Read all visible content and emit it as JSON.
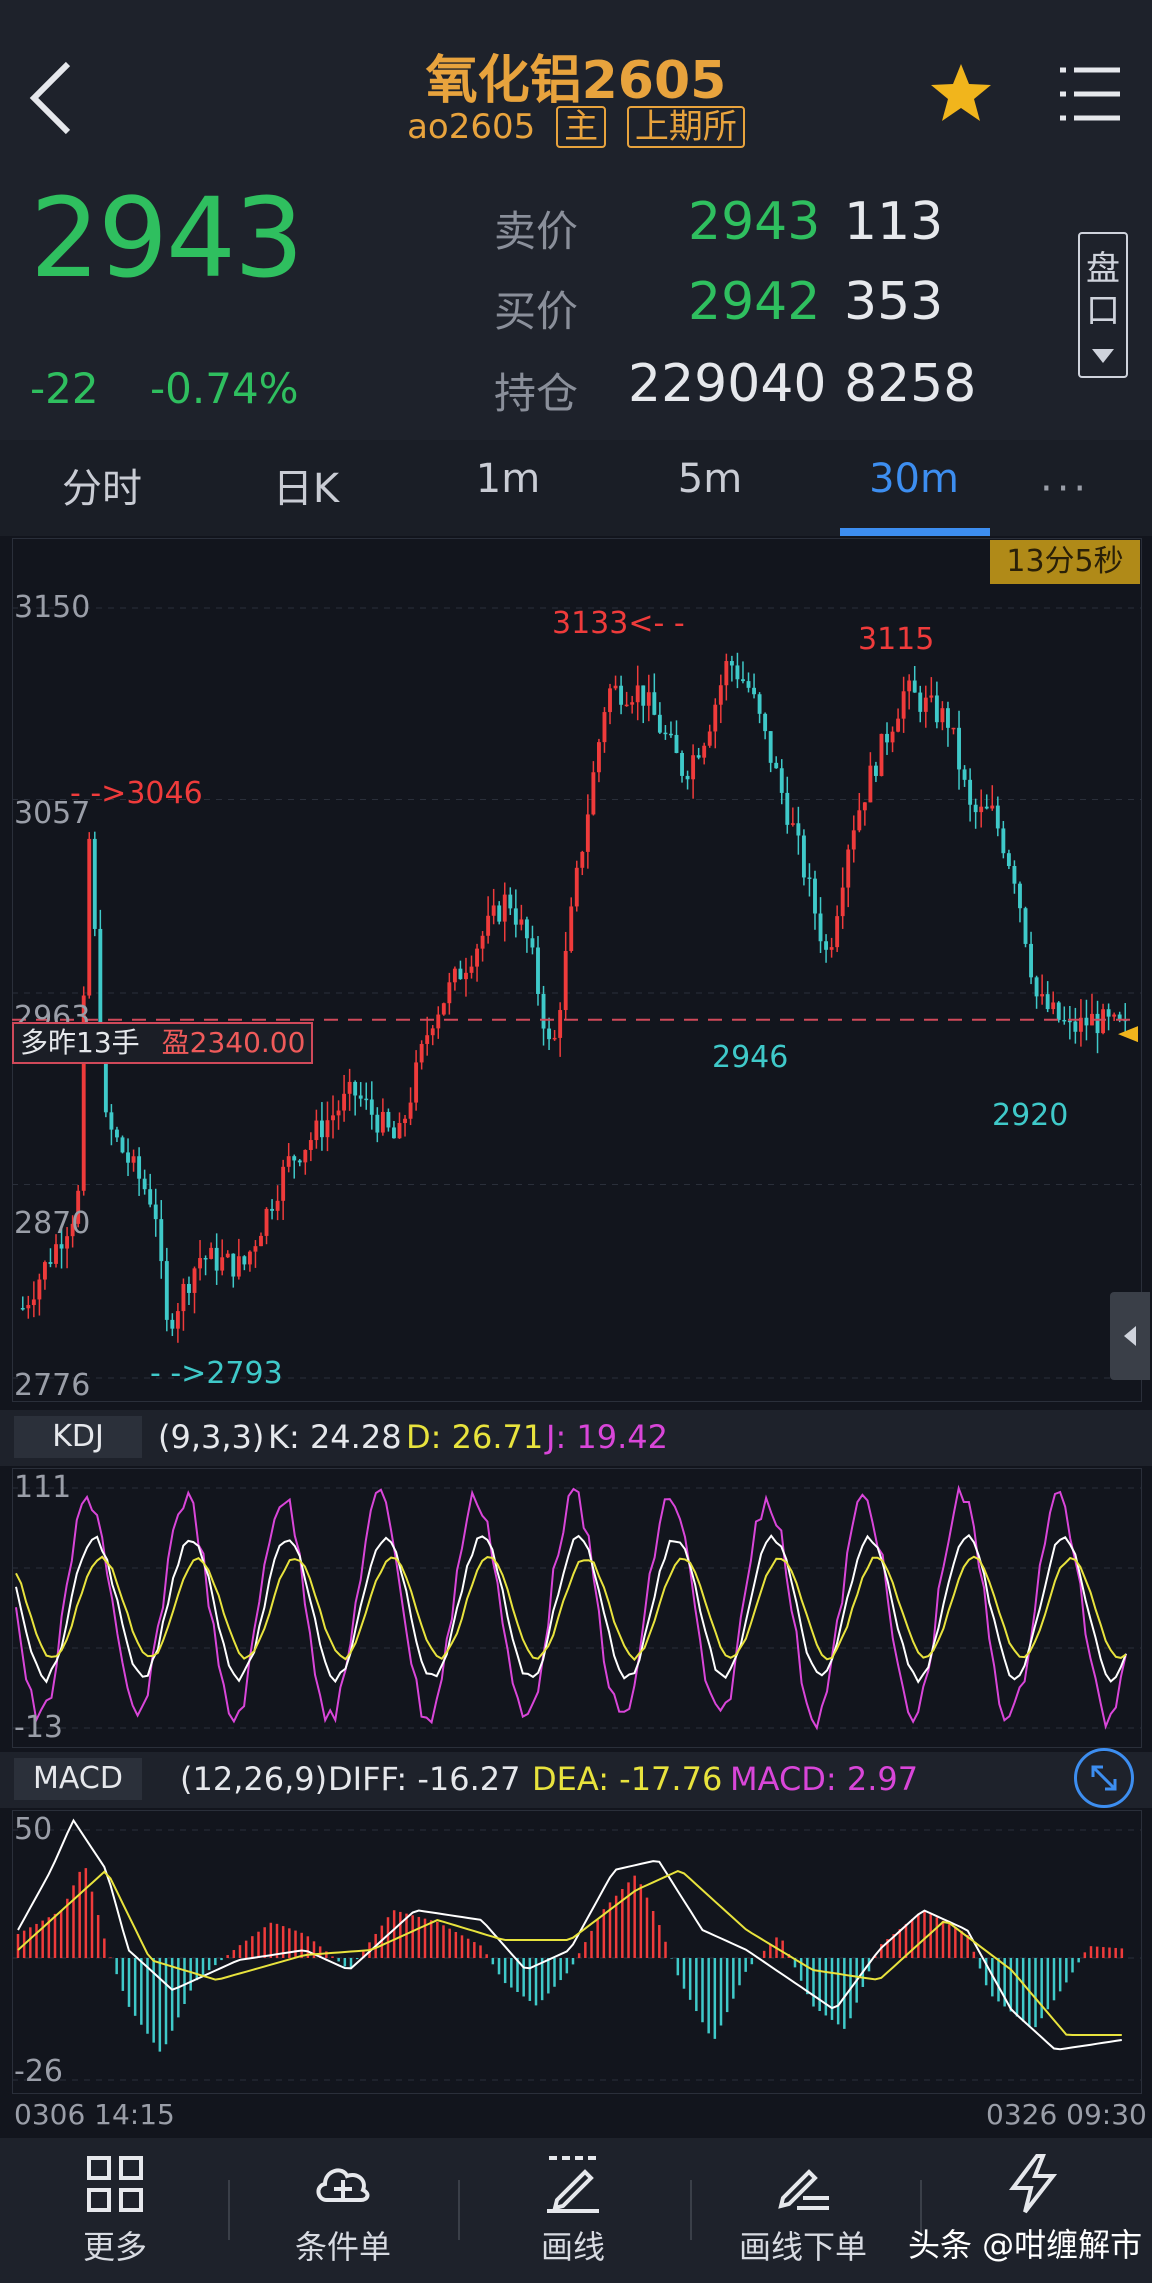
{
  "header": {
    "title": "氧化铝2605",
    "code": "ao2605",
    "tag_main": "主",
    "tag_exchange": "上期所",
    "last_price": "2943",
    "change": "-22",
    "change_pct": "-0.74%"
  },
  "quote": {
    "ask_label": "卖价",
    "ask_price": "2943",
    "ask_vol": "113",
    "bid_label": "买价",
    "bid_price": "2942",
    "bid_vol": "353",
    "oi_label": "持仓",
    "oi": "229040",
    "oi_change": "8258",
    "pan_label": "盘口"
  },
  "tabs": [
    {
      "label": "分时"
    },
    {
      "label": "日K"
    },
    {
      "label": "1m"
    },
    {
      "label": "5m"
    },
    {
      "label": "30m",
      "active": true
    }
  ],
  "more_tabs_label": "···",
  "countdown": "13分5秒",
  "position": {
    "text": "多昨13手",
    "pnl": "盈2340.00"
  },
  "price_axis": [
    "3150",
    "3057",
    "2963",
    "2870",
    "2776"
  ],
  "annotations": {
    "high1": "3133<- -",
    "high2": "3115",
    "mark_left": "- ->3046",
    "low_left": "- ->2793",
    "low_mid": "2946",
    "low_right": "2920"
  },
  "kdj": {
    "name": "KDJ",
    "params": "(9,3,3)",
    "k": "K: 24.28",
    "d": "D: 26.71",
    "j": "J: 19.42",
    "axis_top": "111",
    "axis_bottom": "-13"
  },
  "macd": {
    "name": "MACD",
    "params": "(12,26,9)",
    "diff": "DIFF: -16.27",
    "dea": "DEA: -17.76",
    "macd": "MACD: 2.97",
    "axis_top": "50",
    "axis_bottom": "-26"
  },
  "time_axis": {
    "start": "0306 14:15",
    "end": "0326 09:30"
  },
  "colors": {
    "up": "#ef3b3b",
    "down": "#3fc9c9",
    "accent": "#3d8ef0",
    "gold": "#e8a33d",
    "green": "#2fbf5f"
  },
  "footer": [
    {
      "label": "更多",
      "icon": "grid-icon"
    },
    {
      "label": "条件单",
      "icon": "cloud-plus-icon"
    },
    {
      "label": "画线",
      "icon": "pen-line-icon"
    },
    {
      "label": "画线下单",
      "icon": "pen-order-icon"
    },
    {
      "label": "闪电",
      "icon": "lightning-icon"
    }
  ],
  "watermark": "头条 @咁缠解市",
  "chart_data": {
    "type": "candlestick",
    "period": "30m",
    "y_range": [
      2776,
      3150
    ],
    "y_ticks": [
      3150,
      3057,
      2963,
      2870,
      2776
    ],
    "x_range": [
      "0306 14:15",
      "0326 09:30"
    ],
    "key_points": [
      {
        "label": "- ->3046",
        "value": 3046
      },
      {
        "label": "- ->2793",
        "value": 2793
      },
      {
        "label": "3133<- -",
        "value": 3133
      },
      {
        "label": "2946",
        "value": 2946
      },
      {
        "label": "3115",
        "value": 3115
      },
      {
        "label": "2920",
        "value": 2920
      }
    ],
    "last_price": 2943,
    "position_line": 2950
  }
}
